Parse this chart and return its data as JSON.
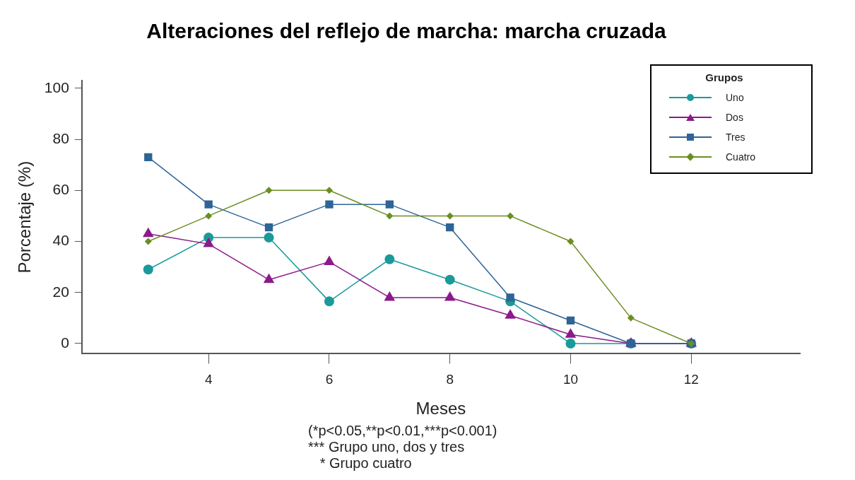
{
  "chart_data": {
    "type": "line",
    "title": "Alteraciones del reflejo de marcha: marcha cruzada",
    "xlabel": "Meses",
    "ylabel": "Porcentaje (%)",
    "legend_title": "Grupos",
    "legend": "top right",
    "grid": false,
    "x": [
      3,
      4,
      5,
      6,
      7,
      8,
      9,
      10,
      11,
      12
    ],
    "xlim": [
      1.9,
      13.8
    ],
    "xticks": [
      4,
      6,
      8,
      10,
      12
    ],
    "ylim": [
      -4,
      103
    ],
    "yticks": [
      0,
      20,
      40,
      60,
      80,
      100
    ],
    "series": [
      {
        "name": "Uno",
        "color": "#1a9a9a",
        "marker": "circle",
        "values": [
          29,
          41.5,
          41.5,
          16.5,
          33,
          25,
          16.5,
          0,
          0,
          0
        ]
      },
      {
        "name": "Dos",
        "color": "#8b1a8b",
        "marker": "triangle",
        "values": [
          43,
          39,
          25,
          32,
          18,
          18,
          11,
          3.5,
          0,
          0
        ]
      },
      {
        "name": "Tres",
        "color": "#2e6496",
        "marker": "square",
        "values": [
          73,
          54.5,
          45.5,
          54.5,
          54.5,
          45.5,
          18,
          9,
          0,
          0
        ]
      },
      {
        "name": "Cuatro",
        "color": "#6b8e23",
        "marker": "diamond",
        "values": [
          40,
          50,
          60,
          60,
          50,
          50,
          50,
          40,
          10,
          0
        ]
      }
    ],
    "annotations": [
      "(*p<0.05,**p<0.01,***p<0.001)",
      "*** Grupo uno, dos y tres",
      "   * Grupo cuatro"
    ]
  }
}
